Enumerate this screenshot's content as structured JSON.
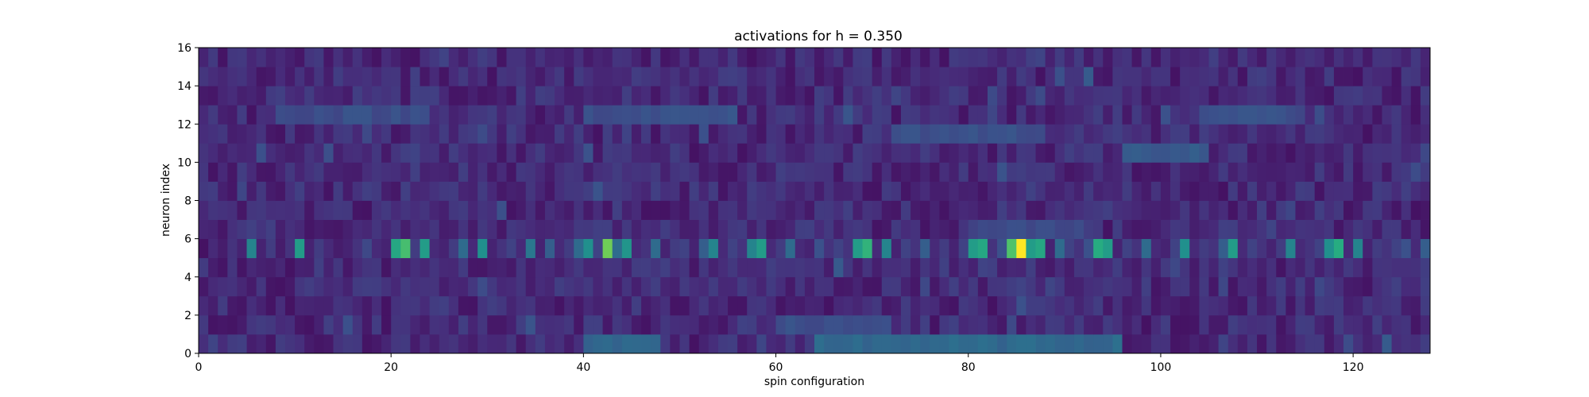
{
  "chart_data": {
    "type": "heatmap",
    "title": "activations for h = 0.350",
    "xlabel": "spin configuration",
    "ylabel": "neuron index",
    "xlim": [
      0,
      128
    ],
    "ylim": [
      0,
      16
    ],
    "xticks": [
      "0",
      "20",
      "40",
      "60",
      "80",
      "100",
      "120"
    ],
    "yticks": [
      "0",
      "2",
      "4",
      "6",
      "8",
      "10",
      "12",
      "14",
      "16"
    ],
    "colormap": "viridis",
    "value_range": [
      0,
      1
    ],
    "n_configurations": 128,
    "n_neurons": 16,
    "strong_neuron_row": 5,
    "strong_neuron_values": [
      0.05,
      0.12,
      0.08,
      0.15,
      0.1,
      0.45,
      0.1,
      0.18,
      0.08,
      0.15,
      0.55,
      0.1,
      0.18,
      0.12,
      0.08,
      0.1,
      0.15,
      0.22,
      0.12,
      0.1,
      0.6,
      0.7,
      0.18,
      0.55,
      0.12,
      0.1,
      0.18,
      0.35,
      0.12,
      0.5,
      0.1,
      0.15,
      0.2,
      0.12,
      0.4,
      0.1,
      0.3,
      0.12,
      0.18,
      0.35,
      0.5,
      0.2,
      0.78,
      0.35,
      0.52,
      0.12,
      0.15,
      0.35,
      0.1,
      0.18,
      0.2,
      0.1,
      0.3,
      0.45,
      0.12,
      0.2,
      0.15,
      0.45,
      0.55,
      0.12,
      0.18,
      0.35,
      0.12,
      0.1,
      0.25,
      0.15,
      0.2,
      0.15,
      0.55,
      0.65,
      0.12,
      0.45,
      0.1,
      0.2,
      0.15,
      0.3,
      0.12,
      0.18,
      0.1,
      0.2,
      0.55,
      0.6,
      0.15,
      0.25,
      0.72,
      1.0,
      0.55,
      0.6,
      0.1,
      0.35,
      0.2,
      0.15,
      0.25,
      0.62,
      0.55,
      0.1,
      0.2,
      0.15,
      0.35,
      0.12,
      0.1,
      0.2,
      0.5,
      0.12,
      0.18,
      0.15,
      0.3,
      0.55,
      0.12,
      0.2,
      0.15,
      0.1,
      0.18,
      0.45,
      0.12,
      0.15,
      0.2,
      0.5,
      0.62,
      0.12,
      0.45,
      0.1,
      0.18,
      0.15,
      0.2,
      0.25,
      0.12,
      0.3
    ],
    "background_mean": 0.12,
    "background_sd": 0.07,
    "bright_bands": [
      {
        "row": 12,
        "from": 8,
        "to": 24,
        "value": 0.24
      },
      {
        "row": 12,
        "from": 40,
        "to": 56,
        "value": 0.25
      },
      {
        "row": 11,
        "from": 72,
        "to": 88,
        "value": 0.25
      },
      {
        "row": 12,
        "from": 104,
        "to": 114,
        "value": 0.25
      },
      {
        "row": 10,
        "from": 96,
        "to": 105,
        "value": 0.28
      },
      {
        "row": 0,
        "from": 40,
        "to": 48,
        "value": 0.32
      },
      {
        "row": 0,
        "from": 64,
        "to": 96,
        "value": 0.34
      },
      {
        "row": 1,
        "from": 60,
        "to": 72,
        "value": 0.24
      },
      {
        "row": 6,
        "from": 80,
        "to": 92,
        "value": 0.22
      }
    ],
    "grid": false,
    "legend": "none",
    "colorbar": false
  }
}
